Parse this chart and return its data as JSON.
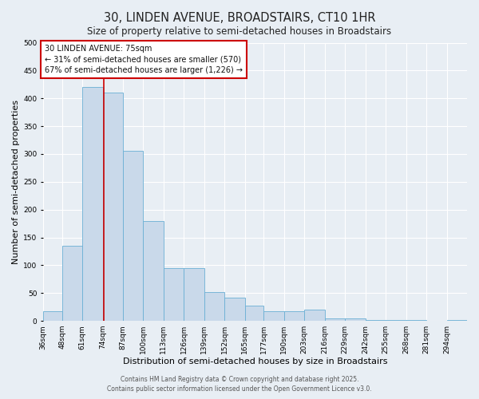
{
  "title": "30, LINDEN AVENUE, BROADSTAIRS, CT10 1HR",
  "subtitle": "Size of property relative to semi-detached houses in Broadstairs",
  "xlabel": "Distribution of semi-detached houses by size in Broadstairs",
  "ylabel": "Number of semi-detached properties",
  "footer_line1": "Contains HM Land Registry data © Crown copyright and database right 2025.",
  "footer_line2": "Contains public sector information licensed under the Open Government Licence v3.0.",
  "bin_labels": [
    "36sqm",
    "48sqm",
    "61sqm",
    "74sqm",
    "87sqm",
    "100sqm",
    "113sqm",
    "126sqm",
    "139sqm",
    "152sqm",
    "165sqm",
    "177sqm",
    "190sqm",
    "203sqm",
    "216sqm",
    "229sqm",
    "242sqm",
    "255sqm",
    "268sqm",
    "281sqm",
    "294sqm"
  ],
  "bar_values": [
    18,
    135,
    420,
    410,
    305,
    180,
    95,
    95,
    52,
    42,
    27,
    18,
    18,
    20,
    5,
    5,
    2,
    2,
    1,
    0,
    1
  ],
  "bin_edges": [
    36,
    48,
    61,
    74,
    87,
    100,
    113,
    126,
    139,
    152,
    165,
    177,
    190,
    203,
    216,
    229,
    242,
    255,
    268,
    281,
    294,
    307
  ],
  "bar_color": "#c9d9ea",
  "bar_edge_color": "#6aafd4",
  "property_size": 75,
  "vline_color": "#cc0000",
  "annotation_text": "30 LINDEN AVENUE: 75sqm\n← 31% of semi-detached houses are smaller (570)\n67% of semi-detached houses are larger (1,226) →",
  "annotation_box_facecolor": "#ffffff",
  "annotation_box_edgecolor": "#cc0000",
  "ylim": [
    0,
    500
  ],
  "yticks": [
    0,
    50,
    100,
    150,
    200,
    250,
    300,
    350,
    400,
    450,
    500
  ],
  "background_color": "#e8eef4",
  "grid_color": "#ffffff",
  "title_fontsize": 10.5,
  "subtitle_fontsize": 8.5,
  "axis_label_fontsize": 8,
  "tick_fontsize": 6.5,
  "annotation_fontsize": 7,
  "footer_fontsize": 5.5
}
